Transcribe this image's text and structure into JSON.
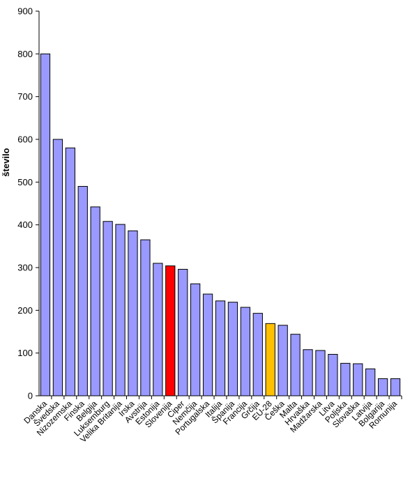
{
  "chart_data": {
    "type": "bar",
    "title": "",
    "xlabel": "",
    "ylabel": "število",
    "ylim": [
      0,
      900
    ],
    "yticks": [
      0,
      100,
      200,
      300,
      400,
      500,
      600,
      700,
      800,
      900
    ],
    "grid": false,
    "legend": "none",
    "categories": [
      "Danska",
      "Švedska",
      "Nizozemska",
      "Finska",
      "Belgija",
      "Luksemburg",
      "Velika Britanija",
      "Irska",
      "Avstrija",
      "Estonija",
      "Slovenija",
      "Ciper",
      "Nemčija",
      "Portugalska",
      "Italija",
      "Španija",
      "Francija",
      "Grčija",
      "EU-28",
      "Češka",
      "Malta",
      "Hrvaška",
      "Madžarska",
      "Litva",
      "Poljska",
      "Slovaška",
      "Latvija",
      "Bolgarija",
      "Romunija"
    ],
    "values": [
      800,
      600,
      580,
      490,
      442,
      408,
      401,
      386,
      365,
      310,
      304,
      296,
      262,
      238,
      222,
      219,
      207,
      193,
      169,
      165,
      144,
      108,
      106,
      97,
      76,
      75,
      63,
      40,
      40
    ],
    "colors": {
      "default": "#9999ff",
      "Slovenija": "#ff0000",
      "EU-28": "#ffc000",
      "border": "#000000"
    }
  }
}
